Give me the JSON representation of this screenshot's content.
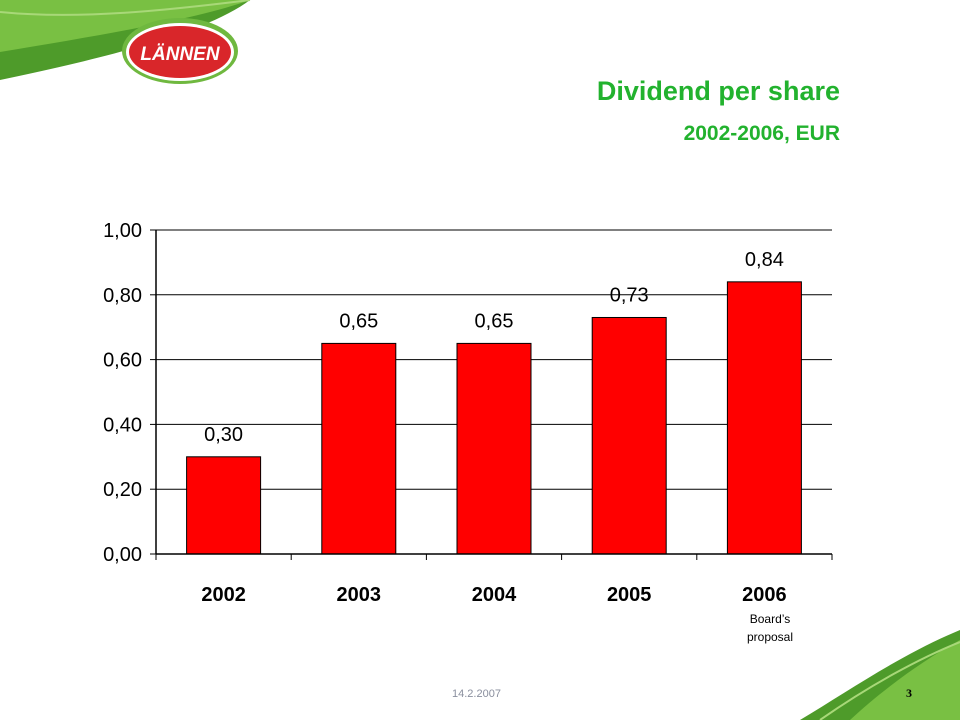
{
  "slide": {
    "title": "Dividend per share",
    "subtitle": "2002-2006, EUR",
    "logo_text": "LÄNNEN",
    "footer_date": "14.2.2007",
    "page_number": "3"
  },
  "colors": {
    "title_green": "#22b22e",
    "bar_red": "#ff0000",
    "logo_red": "#d9262a",
    "leaf_green": "#5aa52c"
  },
  "chart_data": {
    "type": "bar",
    "categories": [
      "2002",
      "2003",
      "2004",
      "2005",
      "2006"
    ],
    "values": [
      0.3,
      0.65,
      0.65,
      0.73,
      0.84
    ],
    "value_labels": [
      "0,30",
      "0,65",
      "0,65",
      "0,73",
      "0,84"
    ],
    "y_ticks": [
      "0,00",
      "0,20",
      "0,40",
      "0,60",
      "0,80",
      "1,00"
    ],
    "ylim": [
      0,
      1.0
    ],
    "gridlines": true,
    "annotations": [
      {
        "category": "2006",
        "text_lines": [
          "Board’s",
          "proposal"
        ]
      }
    ],
    "xlabel": "",
    "ylabel": ""
  }
}
